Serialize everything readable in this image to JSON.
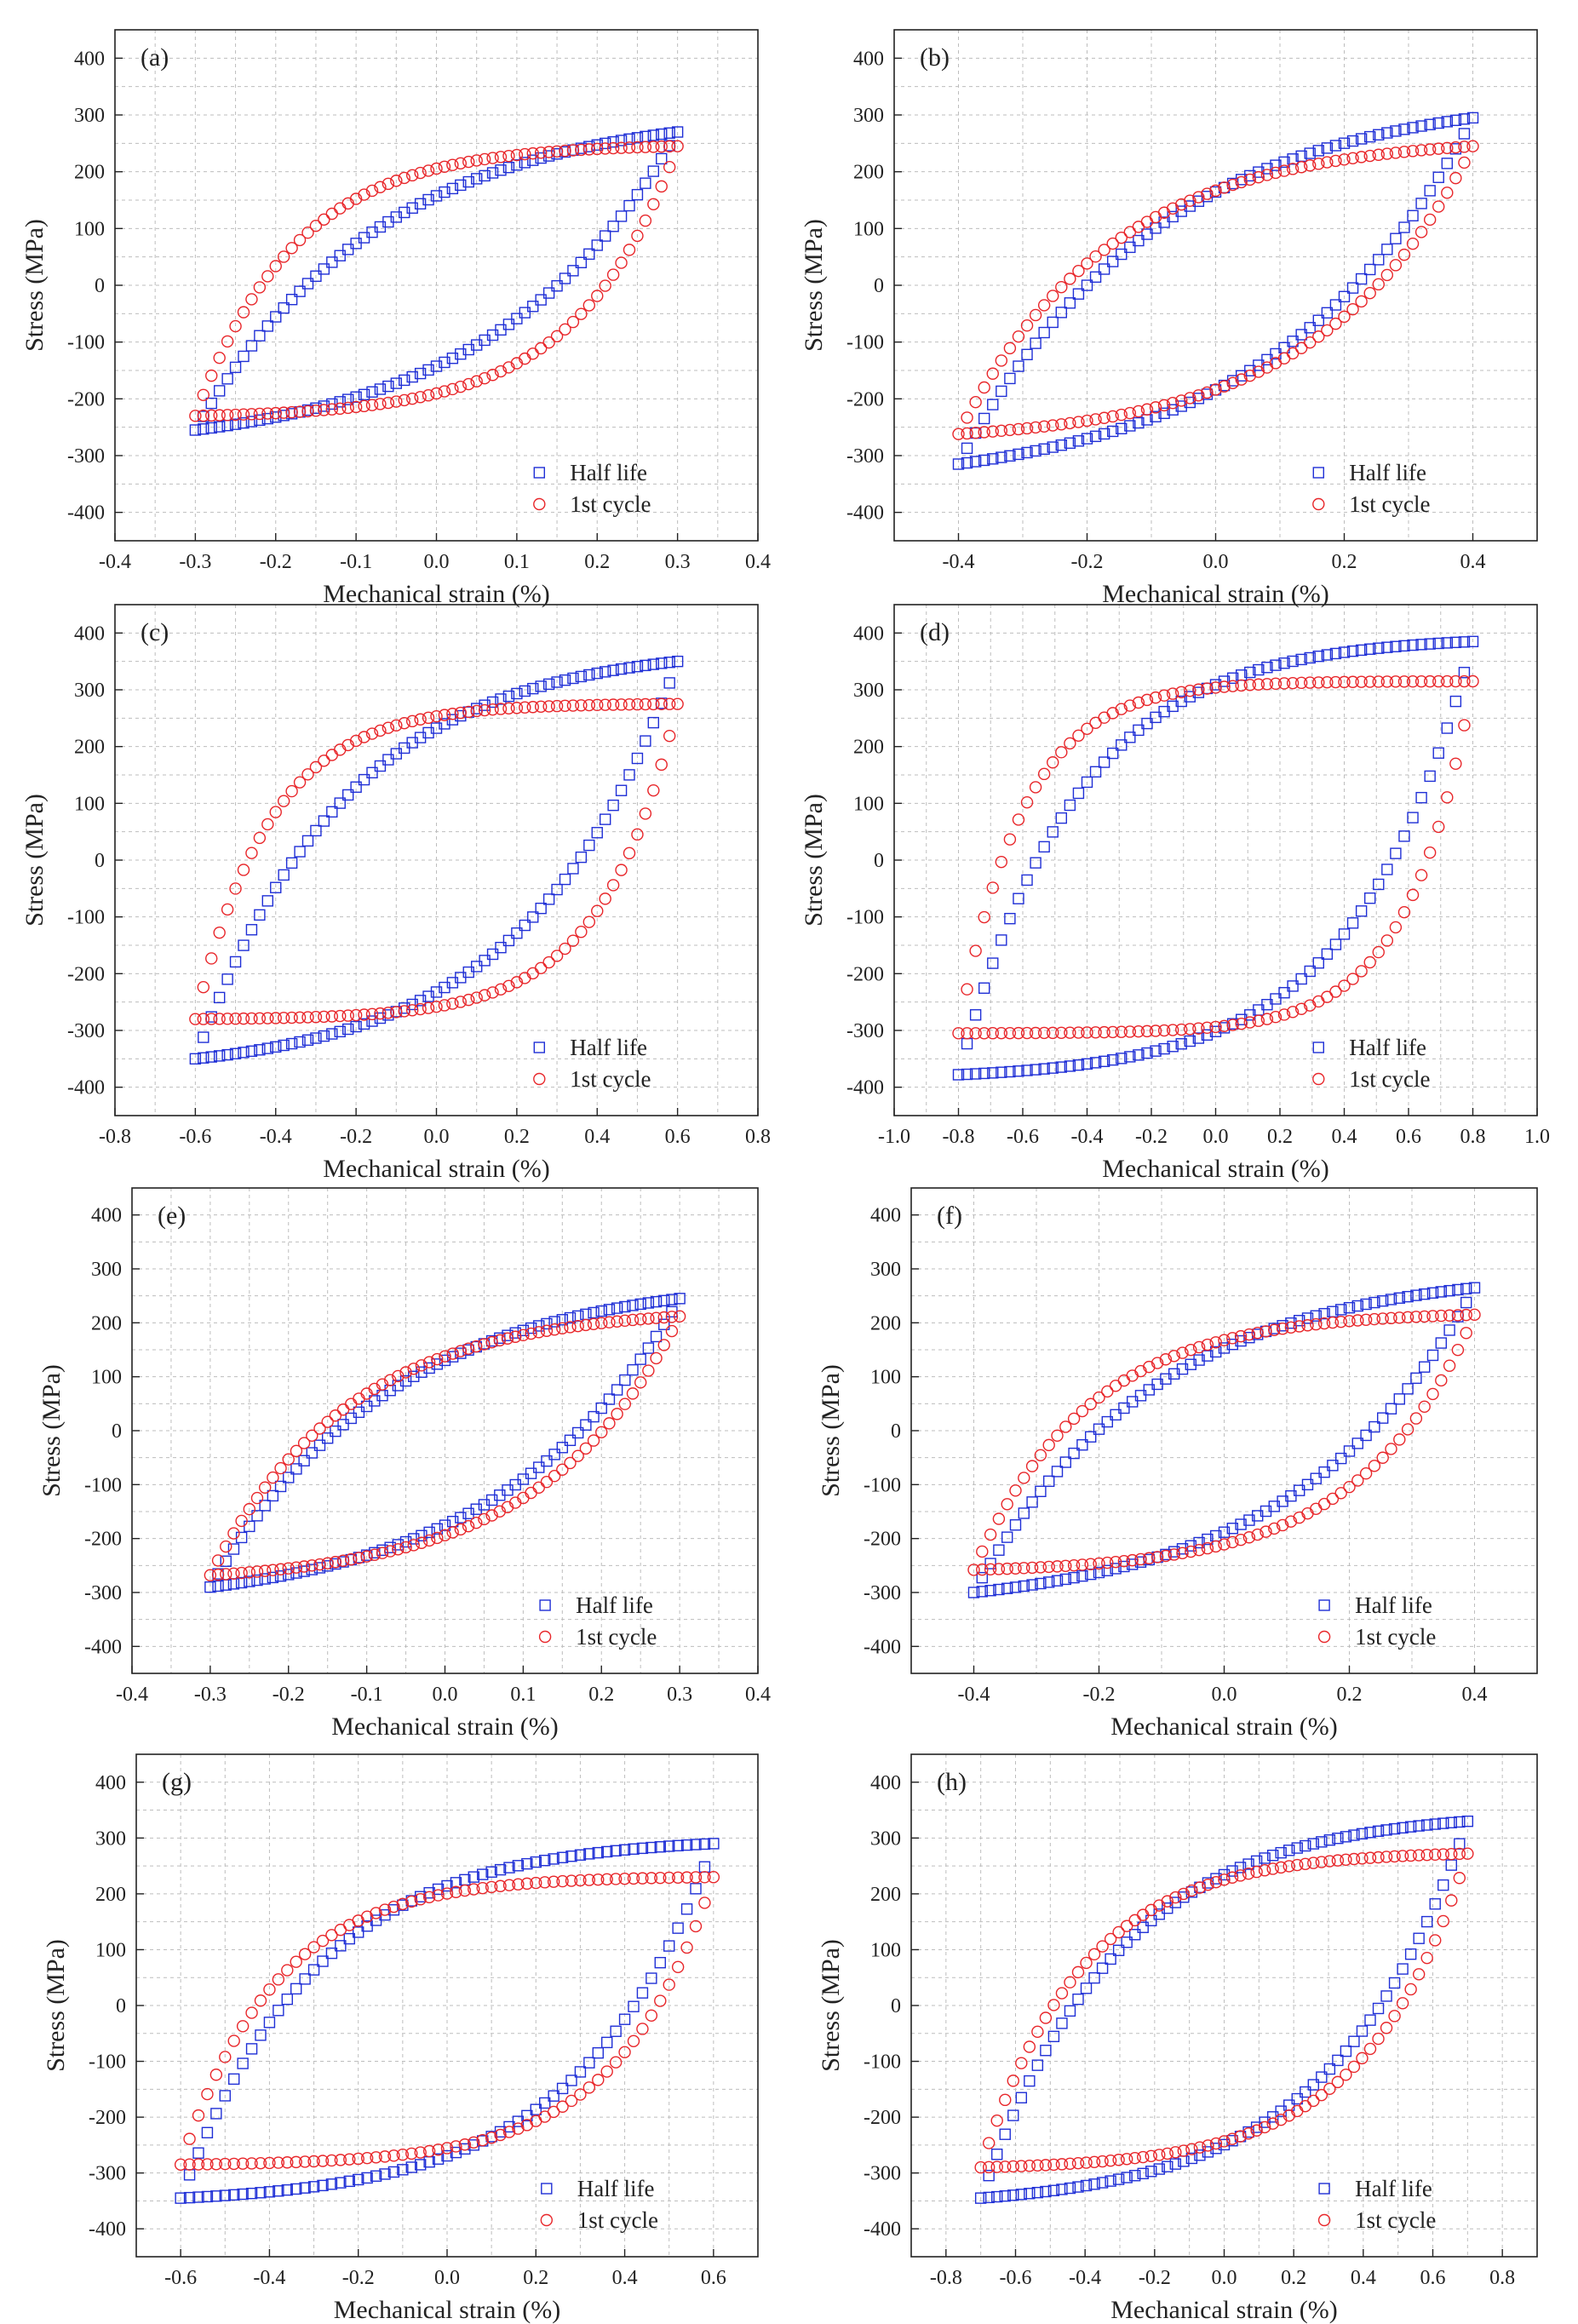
{
  "figure": {
    "legend": {
      "half": "Half life",
      "first": "1st cycle"
    },
    "colors": {
      "half": "#1f2fd6",
      "first": "#e8262a",
      "grid": "#bdbdbd",
      "axis": "#222222"
    }
  },
  "chart_data": [
    {
      "type": "scatter",
      "label": "(a)",
      "xlabel": "Mechanical strain (%)",
      "ylabel": "Stress (MPa)",
      "xlim": [
        -0.4,
        0.4
      ],
      "ylim": [
        -450,
        450
      ],
      "xticks": [
        "-0.4",
        "-0.3",
        "-0.2",
        "-0.1",
        "0.0",
        "0.1",
        "0.2",
        "0.3",
        "0.4"
      ],
      "yticks": [
        "-400",
        "-300",
        "-200",
        "-100",
        "0",
        "100",
        "200",
        "300",
        "400"
      ],
      "legend": [
        "Half life",
        "1st cycle"
      ],
      "series": [
        {
          "name": "Half life",
          "strain_amplitude": 0.3,
          "max_stress": 270,
          "min_stress": -255,
          "tension_shape": 1.3,
          "compression_shape": 1.3
        },
        {
          "name": "1st cycle",
          "strain_amplitude": 0.3,
          "max_stress": 245,
          "min_stress": -230,
          "tension_shape": 2.4,
          "compression_shape": 2.4
        }
      ]
    },
    {
      "type": "scatter",
      "label": "(b)",
      "xlabel": "Mechanical strain (%)",
      "ylabel": "Stress (MPa)",
      "xlim": [
        -0.5,
        0.5
      ],
      "ylim": [
        -450,
        450
      ],
      "xticks": [
        "-0.4",
        "-0.2",
        "0.0",
        "0.2",
        "0.4"
      ],
      "yticks": [
        "-400",
        "-300",
        "-200",
        "-100",
        "0",
        "100",
        "200",
        "300",
        "400"
      ],
      "legend": [
        "Half life",
        "1st cycle"
      ],
      "series": [
        {
          "name": "Half life",
          "strain_amplitude": 0.4,
          "max_stress": 295,
          "min_stress": -315,
          "tension_shape": 1.3,
          "compression_shape": 1.3
        },
        {
          "name": "1st cycle",
          "strain_amplitude": 0.4,
          "max_stress": 245,
          "min_stress": -262,
          "tension_shape": 1.7,
          "compression_shape": 1.7
        }
      ]
    },
    {
      "type": "scatter",
      "label": "(c)",
      "xlabel": "Mechanical strain (%)",
      "ylabel": "Stress (MPa)",
      "xlim": [
        -0.8,
        0.8
      ],
      "ylim": [
        -450,
        450
      ],
      "xticks": [
        "-0.8",
        "-0.6",
        "-0.4",
        "-0.2",
        "0.0",
        "0.2",
        "0.4",
        "0.6",
        "0.8"
      ],
      "yticks": [
        "-400",
        "-300",
        "-200",
        "-100",
        "0",
        "100",
        "200",
        "300",
        "400"
      ],
      "legend": [
        "Half life",
        "1st cycle"
      ],
      "series": [
        {
          "name": "Half life",
          "strain_amplitude": 0.6,
          "max_stress": 350,
          "min_stress": -350,
          "tension_shape": 1.6,
          "compression_shape": 1.6
        },
        {
          "name": "1st cycle",
          "strain_amplitude": 0.6,
          "max_stress": 275,
          "min_stress": -280,
          "tension_shape": 3.2,
          "compression_shape": 3.2
        }
      ]
    },
    {
      "type": "scatter",
      "label": "(d)",
      "xlabel": "Mechanical strain (%)",
      "ylabel": "Stress (MPa)",
      "xlim": [
        -1.0,
        1.0
      ],
      "ylim": [
        -450,
        450
      ],
      "xticks": [
        "-1.0",
        "-0.8",
        "-0.6",
        "-0.4",
        "-0.2",
        "0.0",
        "0.2",
        "0.4",
        "0.6",
        "0.8",
        "1.0"
      ],
      "yticks": [
        "-400",
        "-300",
        "-200",
        "-100",
        "0",
        "100",
        "200",
        "300",
        "400"
      ],
      "legend": [
        "Half life",
        "1st cycle"
      ],
      "series": [
        {
          "name": "Half life",
          "strain_amplitude": 0.8,
          "max_stress": 385,
          "min_stress": -378,
          "tension_shape": 2.2,
          "compression_shape": 2.2
        },
        {
          "name": "1st cycle",
          "strain_amplitude": 0.8,
          "max_stress": 315,
          "min_stress": -305,
          "tension_shape": 4.0,
          "compression_shape": 4.0
        }
      ]
    },
    {
      "type": "scatter",
      "label": "(e)",
      "xlabel": "Mechanical strain (%)",
      "ylabel": "Stress (MPa)",
      "xlim": [
        -0.4,
        0.4
      ],
      "ylim": [
        -450,
        450
      ],
      "xticks": [
        "-0.4",
        "-0.3",
        "-0.2",
        "-0.1",
        "0.0",
        "0.1",
        "0.2",
        "0.3",
        "0.4"
      ],
      "yticks": [
        "-400",
        "-300",
        "-200",
        "-100",
        "0",
        "100",
        "200",
        "300",
        "400"
      ],
      "legend": [
        "Half life",
        "1st cycle"
      ],
      "series": [
        {
          "name": "Half life",
          "strain_amplitude": 0.3,
          "max_stress": 245,
          "min_stress": -290,
          "tension_shape": 1.3,
          "compression_shape": 1.3
        },
        {
          "name": "1st cycle",
          "strain_amplitude": 0.3,
          "max_stress": 212,
          "min_stress": -268,
          "tension_shape": 1.7,
          "compression_shape": 1.7
        }
      ]
    },
    {
      "type": "scatter",
      "label": "(f)",
      "xlabel": "Mechanical strain (%)",
      "ylabel": "Stress (MPa)",
      "xlim": [
        -0.5,
        0.5
      ],
      "ylim": [
        -450,
        450
      ],
      "xticks": [
        "-0.4",
        "-0.2",
        "0.0",
        "0.2",
        "0.4"
      ],
      "yticks": [
        "-400",
        "-300",
        "-200",
        "-100",
        "0",
        "100",
        "200",
        "300",
        "400"
      ],
      "legend": [
        "Half life",
        "1st cycle"
      ],
      "series": [
        {
          "name": "Half life",
          "strain_amplitude": 0.4,
          "max_stress": 265,
          "min_stress": -300,
          "tension_shape": 1.4,
          "compression_shape": 1.4
        },
        {
          "name": "1st cycle",
          "strain_amplitude": 0.4,
          "max_stress": 215,
          "min_stress": -258,
          "tension_shape": 2.2,
          "compression_shape": 2.2
        }
      ]
    },
    {
      "type": "scatter",
      "label": "(g)",
      "xlabel": "Mechanical strain (%)",
      "ylabel": "Stress (MPa)",
      "xlim": [
        -0.7,
        0.7
      ],
      "ylim": [
        -450,
        450
      ],
      "xticks": [
        "-0.6",
        "-0.4",
        "-0.2",
        "0.0",
        "0.2",
        "0.4",
        "0.6"
      ],
      "yticks": [
        "-400",
        "-300",
        "-200",
        "-100",
        "0",
        "100",
        "200",
        "300",
        "400"
      ],
      "legend": [
        "Half life",
        "1st cycle"
      ],
      "series": [
        {
          "name": "Half life",
          "strain_amplitude": 0.6,
          "max_stress": 290,
          "min_stress": -345,
          "tension_shape": 2.0,
          "compression_shape": 2.0
        },
        {
          "name": "1st cycle",
          "strain_amplitude": 0.6,
          "max_stress": 230,
          "min_stress": -285,
          "tension_shape": 2.8,
          "compression_shape": 2.8
        }
      ]
    },
    {
      "type": "scatter",
      "label": "(h)",
      "xlabel": "Mechanical strain (%)",
      "ylabel": "Stress (MPa)",
      "xlim": [
        -0.9,
        0.9
      ],
      "ylim": [
        -450,
        450
      ],
      "xticks": [
        "-0.8",
        "-0.6",
        "-0.4",
        "-0.2",
        "0.0",
        "0.2",
        "0.4",
        "0.6",
        "0.8"
      ],
      "yticks": [
        "-400",
        "-300",
        "-200",
        "-100",
        "0",
        "100",
        "200",
        "300",
        "400"
      ],
      "legend": [
        "Half life",
        "1st cycle"
      ],
      "series": [
        {
          "name": "Half life",
          "strain_amplitude": 0.7,
          "max_stress": 330,
          "min_stress": -345,
          "tension_shape": 1.8,
          "compression_shape": 1.8
        },
        {
          "name": "1st cycle",
          "strain_amplitude": 0.7,
          "max_stress": 272,
          "min_stress": -290,
          "tension_shape": 2.4,
          "compression_shape": 2.4
        }
      ]
    }
  ]
}
